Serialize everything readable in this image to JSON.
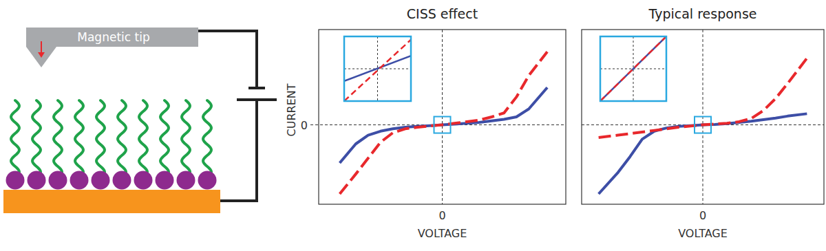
{
  "diagram": {
    "tip_label": "Magnetic tip"
  },
  "chart_data": [
    {
      "type": "line",
      "title": "CISS effect",
      "x_label": "VOLTAGE",
      "y_label": "CURRENT",
      "x": [
        -0.83,
        -0.7,
        -0.6,
        -0.5,
        -0.4,
        -0.3,
        -0.2,
        -0.1,
        0,
        0.1,
        0.2,
        0.3,
        0.4,
        0.5,
        0.6,
        0.7,
        0.85
      ],
      "xlim": [
        -1,
        1
      ],
      "ylim": [
        -1,
        1.2
      ],
      "xticks": [
        0
      ],
      "yticks": [
        0
      ],
      "grid": true,
      "series": [
        {
          "color": "#3d4ea6",
          "line_style": "solid",
          "values": [
            -0.48,
            -0.24,
            -0.13,
            -0.08,
            -0.05,
            -0.03,
            -0.02,
            -0.01,
            0,
            0.01,
            0.02,
            0.03,
            0.05,
            0.07,
            0.1,
            0.2,
            0.47
          ]
        },
        {
          "color": "#e8282c",
          "line_style": "dashed",
          "values": [
            -0.87,
            -0.62,
            -0.42,
            -0.22,
            -0.1,
            -0.05,
            -0.03,
            -0.015,
            0,
            0.02,
            0.04,
            0.06,
            0.1,
            0.15,
            0.35,
            0.62,
            0.92
          ]
        }
      ]
    },
    {
      "type": "line",
      "title": "Typical response",
      "x_label": "VOLTAGE",
      "tick_labels": "x",
      "x": [
        -0.86,
        -0.7,
        -0.6,
        -0.5,
        -0.4,
        -0.3,
        -0.2,
        -0.1,
        0,
        0.1,
        0.2,
        0.3,
        0.4,
        0.5,
        0.6,
        0.7,
        0.86
      ],
      "xlim": [
        -1,
        1
      ],
      "ylim": [
        -1,
        1.2
      ],
      "xticks": [
        0
      ],
      "yticks": [
        0
      ],
      "grid": true,
      "series": [
        {
          "color": "#3d4ea6",
          "line_style": "solid",
          "values": [
            -0.87,
            -0.6,
            -0.4,
            -0.18,
            -0.08,
            -0.04,
            -0.02,
            -0.01,
            0,
            0.005,
            0.015,
            0.03,
            0.045,
            0.065,
            0.085,
            0.11,
            0.14
          ]
        },
        {
          "color": "#e8282c",
          "line_style": "dashed",
          "values": [
            -0.16,
            -0.13,
            -0.11,
            -0.09,
            -0.07,
            -0.05,
            -0.03,
            -0.015,
            0,
            0.01,
            0.02,
            0.04,
            0.08,
            0.18,
            0.33,
            0.52,
            0.84
          ]
        }
      ]
    },
    {
      "type": "line",
      "x": [
        -1,
        1
      ],
      "xlim": [
        -1,
        1
      ],
      "ylim": [
        -1,
        1
      ],
      "xticks": [
        0
      ],
      "yticks": [
        0
      ],
      "grid": true,
      "tick_labels": false,
      "series": [
        {
          "color": "#3d4ea6",
          "line_style": "solid",
          "values": [
            -0.38,
            0.4
          ]
        },
        {
          "color": "#e8282c",
          "line_style": "dashed",
          "values": [
            -1,
            0.9
          ]
        }
      ]
    },
    {
      "type": "line",
      "x": [
        -1,
        1
      ],
      "xlim": [
        -1,
        1
      ],
      "ylim": [
        -1,
        1
      ],
      "xticks": [
        0
      ],
      "yticks": [
        0
      ],
      "grid": true,
      "tick_labels": false,
      "series": [
        {
          "color": "#3d4ea6",
          "line_style": "solid",
          "values": [
            -1,
            1
          ]
        },
        {
          "color": "#e8282c",
          "line_style": "dashed",
          "values": [
            -1,
            1
          ]
        }
      ]
    }
  ]
}
